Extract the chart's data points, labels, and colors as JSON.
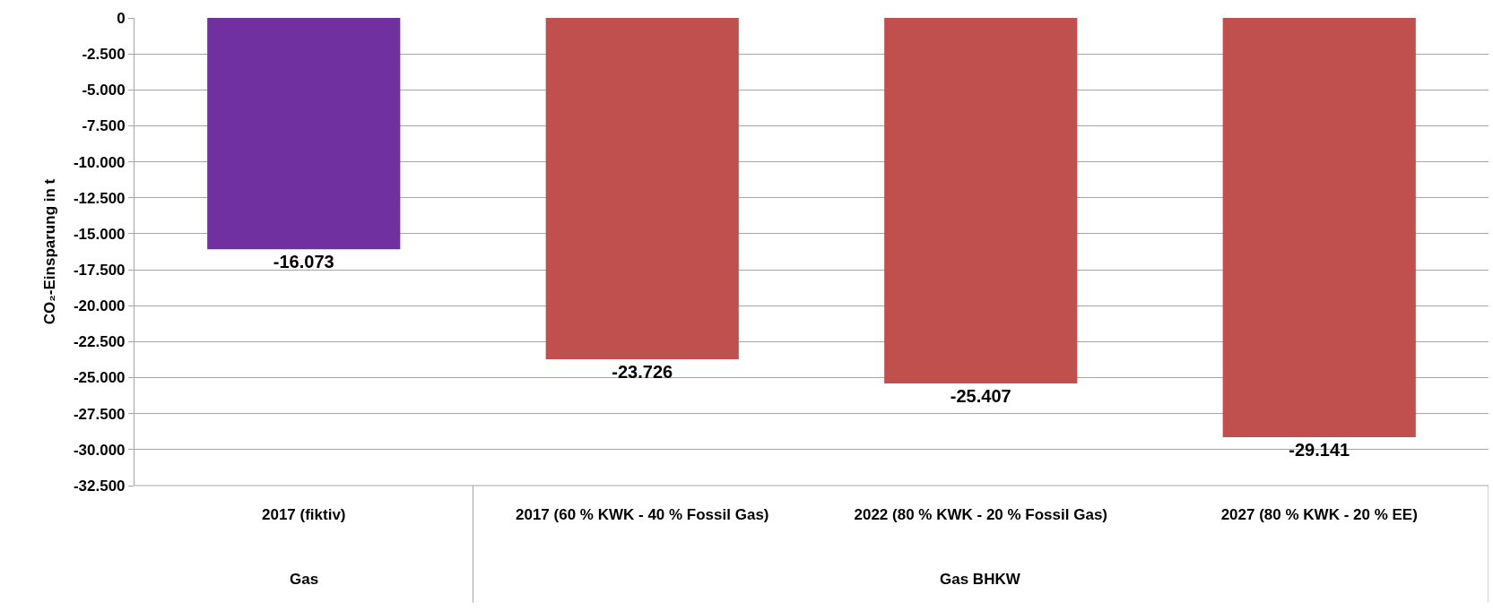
{
  "chart_data": {
    "type": "bar",
    "ylabel": "CO₂-Einsparung in t",
    "categories": [
      "2017 (fiktiv)",
      "2017 (60 % KWK - 40 % Fossil Gas)",
      "2022 (80 % KWK - 20 % Fossil Gas)",
      "2027 (80 % KWK - 20 % EE)"
    ],
    "values": [
      -16073,
      -23726,
      -25407,
      -29141
    ],
    "colors": [
      "#7030a0",
      "#c0504d",
      "#c0504d",
      "#c0504d"
    ],
    "value_labels": [
      "-16.073",
      "-23.726",
      "-25.407",
      "-29.141"
    ],
    "ylim": [
      -32500,
      0
    ],
    "yticks": [
      {
        "value": 0,
        "label": "0"
      },
      {
        "value": -2500,
        "label": "-2.500"
      },
      {
        "value": -5000,
        "label": "-5.000"
      },
      {
        "value": -7500,
        "label": "-7.500"
      },
      {
        "value": -10000,
        "label": "-10.000"
      },
      {
        "value": -12500,
        "label": "-12.500"
      },
      {
        "value": -15000,
        "label": "-15.000"
      },
      {
        "value": -17500,
        "label": "-17.500"
      },
      {
        "value": -20000,
        "label": "-20.000"
      },
      {
        "value": -22500,
        "label": "-22.500"
      },
      {
        "value": -25000,
        "label": "-25.000"
      },
      {
        "value": -27500,
        "label": "-27.500"
      },
      {
        "value": -30000,
        "label": "-30.000"
      },
      {
        "value": -32500,
        "label": "-32.500"
      }
    ],
    "annotations": [
      "Gas",
      "Gas BHKW"
    ],
    "grid": "y"
  }
}
